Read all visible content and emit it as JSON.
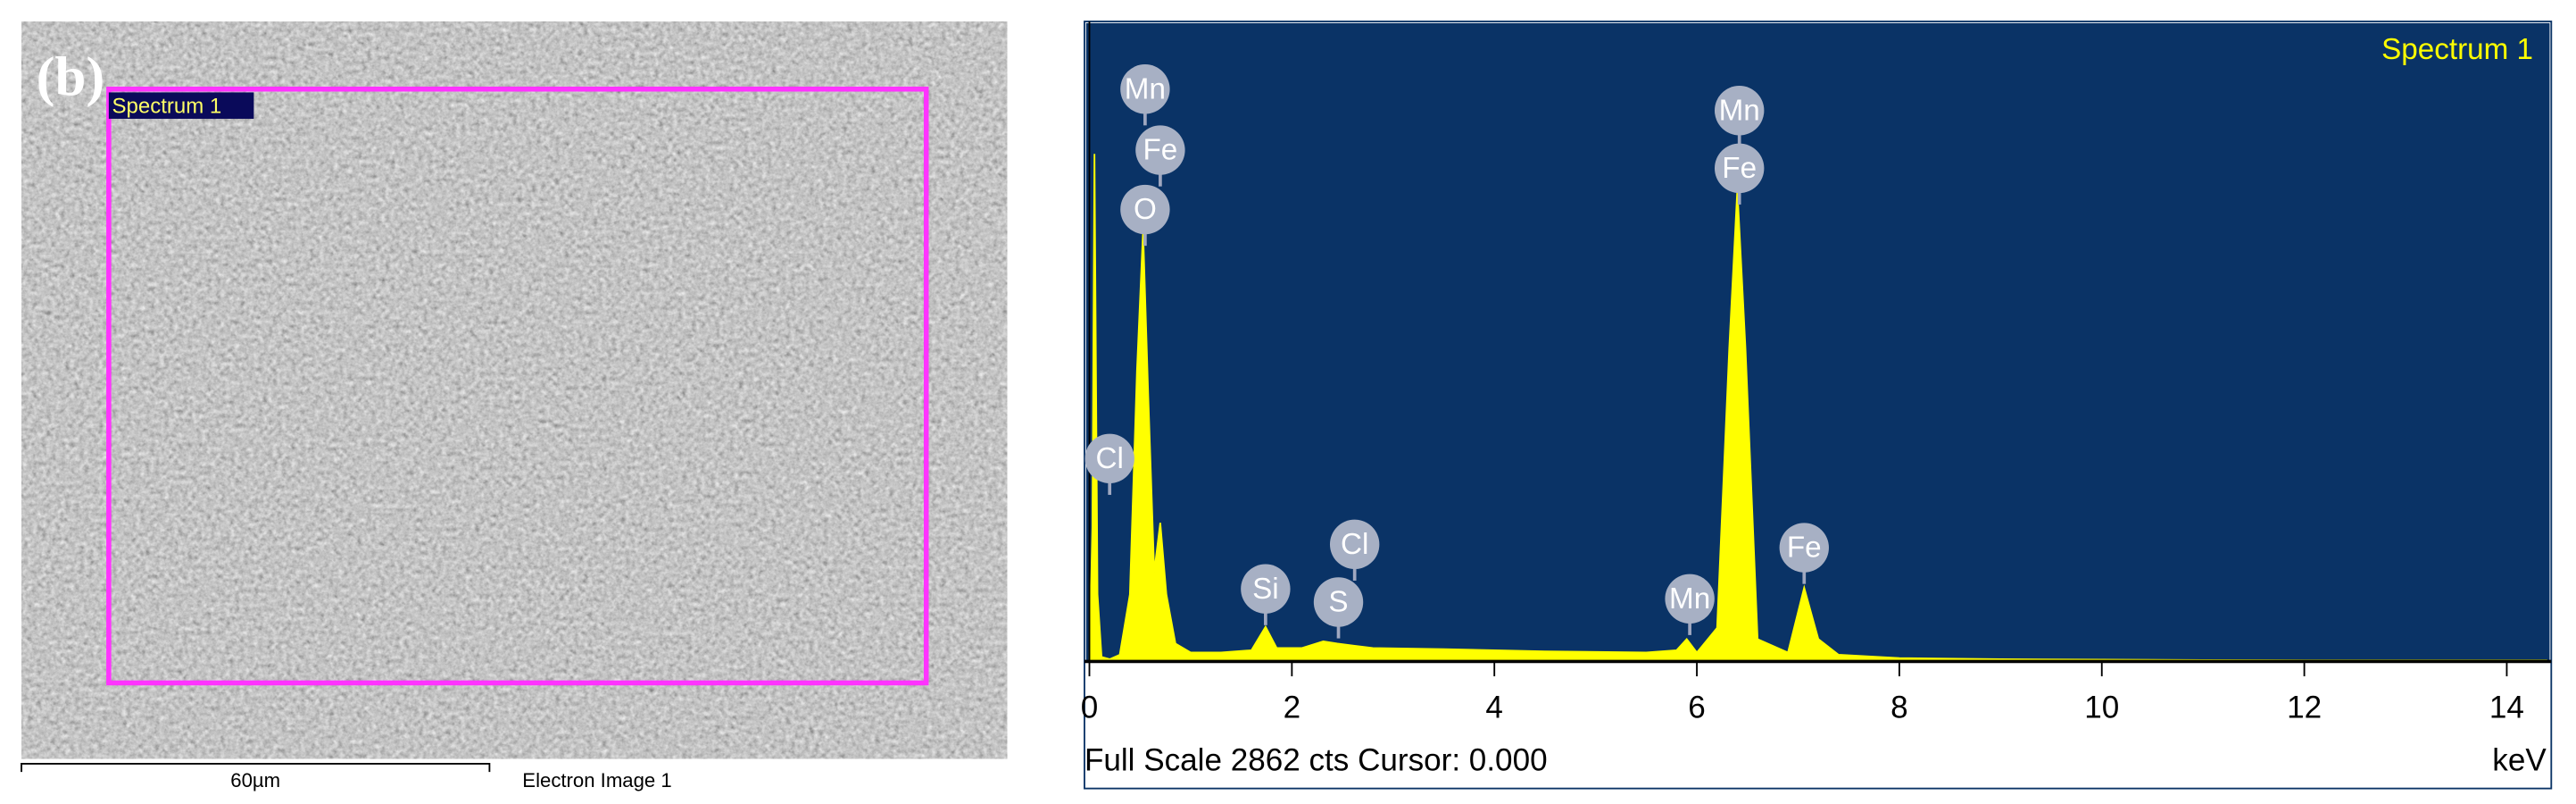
{
  "image": {
    "panel_label": "(b)",
    "region_label": "Spectrum 1",
    "scale_bar": "60µm",
    "caption": "Electron Image 1"
  },
  "chart_data": {
    "type": "area",
    "title": "Spectrum 1",
    "footer": "Full Scale 2862 cts Cursor: 0.000",
    "x_label": "keV",
    "color": "#ffff00",
    "background": "#0a3366",
    "x": [
      0,
      0.03,
      0.05,
      0.08,
      0.12,
      0.2,
      0.3,
      0.4,
      0.47,
      0.53,
      0.58,
      0.64,
      0.7,
      0.76,
      0.85,
      1.0,
      1.3,
      1.6,
      1.74,
      1.85,
      2.1,
      2.31,
      2.45,
      2.62,
      2.8,
      3.5,
      4.5,
      5.5,
      5.8,
      5.9,
      6.0,
      6.2,
      6.32,
      6.4,
      6.48,
      6.6,
      6.9,
      7.06,
      7.2,
      7.4,
      8,
      9,
      10,
      11,
      12,
      13,
      14.4
    ],
    "values": [
      0,
      600,
      2270,
      300,
      20,
      10,
      30,
      300,
      1300,
      1925,
      1200,
      400,
      620,
      300,
      80,
      40,
      40,
      50,
      155,
      60,
      60,
      90,
      80,
      70,
      60,
      55,
      45,
      40,
      50,
      100,
      40,
      150,
      1400,
      2110,
      1400,
      100,
      40,
      330,
      100,
      30,
      15,
      10,
      8,
      6,
      5,
      5,
      5
    ],
    "xlim": [
      0,
      14.44
    ],
    "ylim": [
      0,
      2862
    ],
    "xticks": [
      0,
      2,
      4,
      6,
      8,
      10,
      12,
      14
    ],
    "peak_labels": [
      {
        "label": "Mn",
        "x": 0.55
      },
      {
        "label": "Fe",
        "x": 0.7
      },
      {
        "label": "O",
        "x": 0.55
      },
      {
        "label": "Cl",
        "x": 0.2
      },
      {
        "label": "Si",
        "x": 1.74
      },
      {
        "label": "S",
        "x": 2.46
      },
      {
        "label": "Cl",
        "x": 2.62
      },
      {
        "label": "Mn",
        "x": 5.93
      },
      {
        "label": "Mn",
        "x": 6.42
      },
      {
        "label": "Fe",
        "x": 6.42
      },
      {
        "label": "Fe",
        "x": 7.06
      }
    ]
  }
}
